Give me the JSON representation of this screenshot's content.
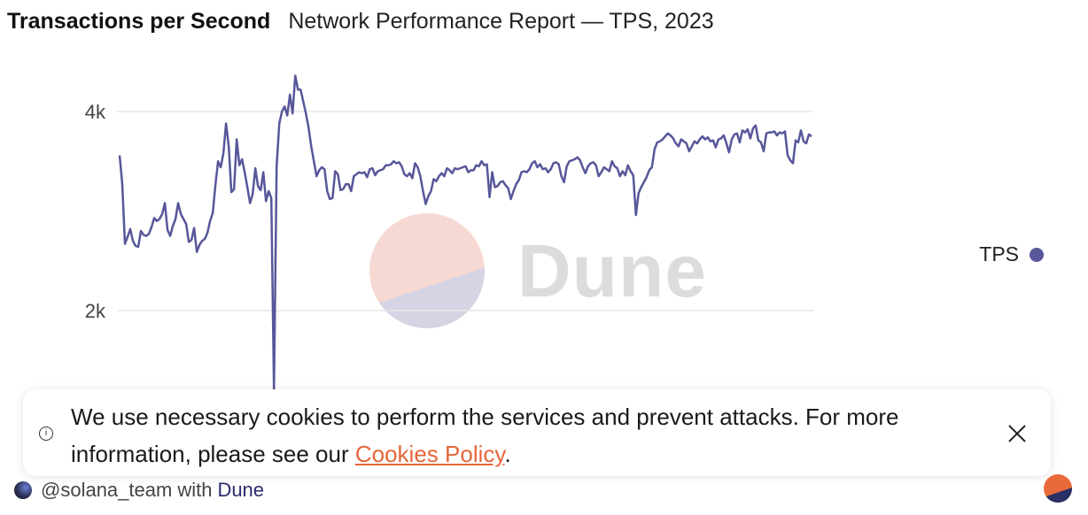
{
  "header": {
    "title": "Transactions per Second",
    "subtitle": "Network Performance Report — TPS, 2023"
  },
  "legend": {
    "label": "TPS"
  },
  "watermark": {
    "text": "Dune"
  },
  "cookie_banner": {
    "text_before": "We use necessary cookies to perform the services and prevent attacks. For more information, please see our ",
    "link_text": "Cookies Policy",
    "text_after": ".",
    "info_icon_glyph": "i",
    "close_icon": "close-icon"
  },
  "footer": {
    "user": "@solana_team",
    "with_text": "with",
    "brand": "Dune"
  },
  "colors": {
    "series": "#57579a",
    "link": "#e4673a",
    "grid": "#e6e6e6",
    "logo_top": "#f6d9d2",
    "logo_bottom": "#d6d4e4"
  },
  "chart_data": {
    "type": "line",
    "title": "Transactions per Second",
    "subtitle": "Network Performance Report — TPS, 2023",
    "xlabel": "",
    "ylabel": "",
    "ylim": [
      1200,
      4400
    ],
    "yticks": [
      2000,
      4000
    ],
    "ytick_labels": [
      "2k",
      "4k"
    ],
    "grid": true,
    "legend_position": "right",
    "series": [
      {
        "name": "TPS",
        "color": "#57579a",
        "values": [
          3560,
          3270,
          2670,
          2740,
          2820,
          2700,
          2650,
          2640,
          2800,
          2760,
          2750,
          2770,
          2840,
          2930,
          2900,
          2920,
          2970,
          3080,
          2810,
          2750,
          2850,
          2920,
          3080,
          2970,
          2920,
          2870,
          2690,
          2710,
          2830,
          2590,
          2660,
          2700,
          2720,
          2780,
          2900,
          2980,
          3260,
          3500,
          3440,
          3580,
          3880,
          3650,
          3190,
          3220,
          3720,
          3460,
          3520,
          3390,
          3240,
          3080,
          3170,
          3430,
          3250,
          3210,
          3390,
          3100,
          3200,
          3130,
          1200,
          3450,
          3880,
          4000,
          4050,
          3960,
          4170,
          3980,
          4360,
          4220,
          4220,
          4100,
          3980,
          3840,
          3650,
          3500,
          3350,
          3410,
          3440,
          3420,
          3200,
          3120,
          3130,
          3400,
          3370,
          3210,
          3220,
          3270,
          3270,
          3200,
          3350,
          3370,
          3390,
          3380,
          3390,
          3340,
          3420,
          3430,
          3360,
          3400,
          3410,
          3420,
          3460,
          3460,
          3470,
          3500,
          3480,
          3490,
          3450,
          3370,
          3350,
          3380,
          3330,
          3480,
          3440,
          3350,
          3200,
          3070,
          3150,
          3200,
          3320,
          3300,
          3350,
          3380,
          3350,
          3430,
          3410,
          3380,
          3430,
          3420,
          3430,
          3440,
          3450,
          3390,
          3410,
          3410,
          3460,
          3450,
          3500,
          3460,
          3470,
          3140,
          3390,
          3240,
          3250,
          3290,
          3300,
          3260,
          3230,
          3120,
          3200,
          3270,
          3310,
          3390,
          3400,
          3390,
          3420,
          3480,
          3500,
          3440,
          3470,
          3420,
          3430,
          3390,
          3420,
          3480,
          3490,
          3470,
          3350,
          3290,
          3450,
          3500,
          3510,
          3520,
          3540,
          3510,
          3440,
          3380,
          3450,
          3480,
          3490,
          3460,
          3350,
          3390,
          3440,
          3420,
          3400,
          3500,
          3450,
          3430,
          3350,
          3400,
          3360,
          3460,
          3400,
          3360,
          2960,
          3180,
          3240,
          3290,
          3340,
          3410,
          3440,
          3620,
          3690,
          3700,
          3720,
          3750,
          3780,
          3760,
          3730,
          3680,
          3650,
          3720,
          3700,
          3680,
          3600,
          3650,
          3700,
          3680,
          3720,
          3750,
          3720,
          3740,
          3700,
          3710,
          3640,
          3720,
          3730,
          3760,
          3680,
          3590,
          3720,
          3770,
          3780,
          3690,
          3810,
          3790,
          3820,
          3730,
          3830,
          3860,
          3710,
          3690,
          3600,
          3780,
          3790,
          3790,
          3800,
          3760,
          3790,
          3780,
          3800,
          3560,
          3510,
          3480,
          3710,
          3690,
          3810,
          3700,
          3680,
          3770,
          3750
        ]
      }
    ]
  }
}
